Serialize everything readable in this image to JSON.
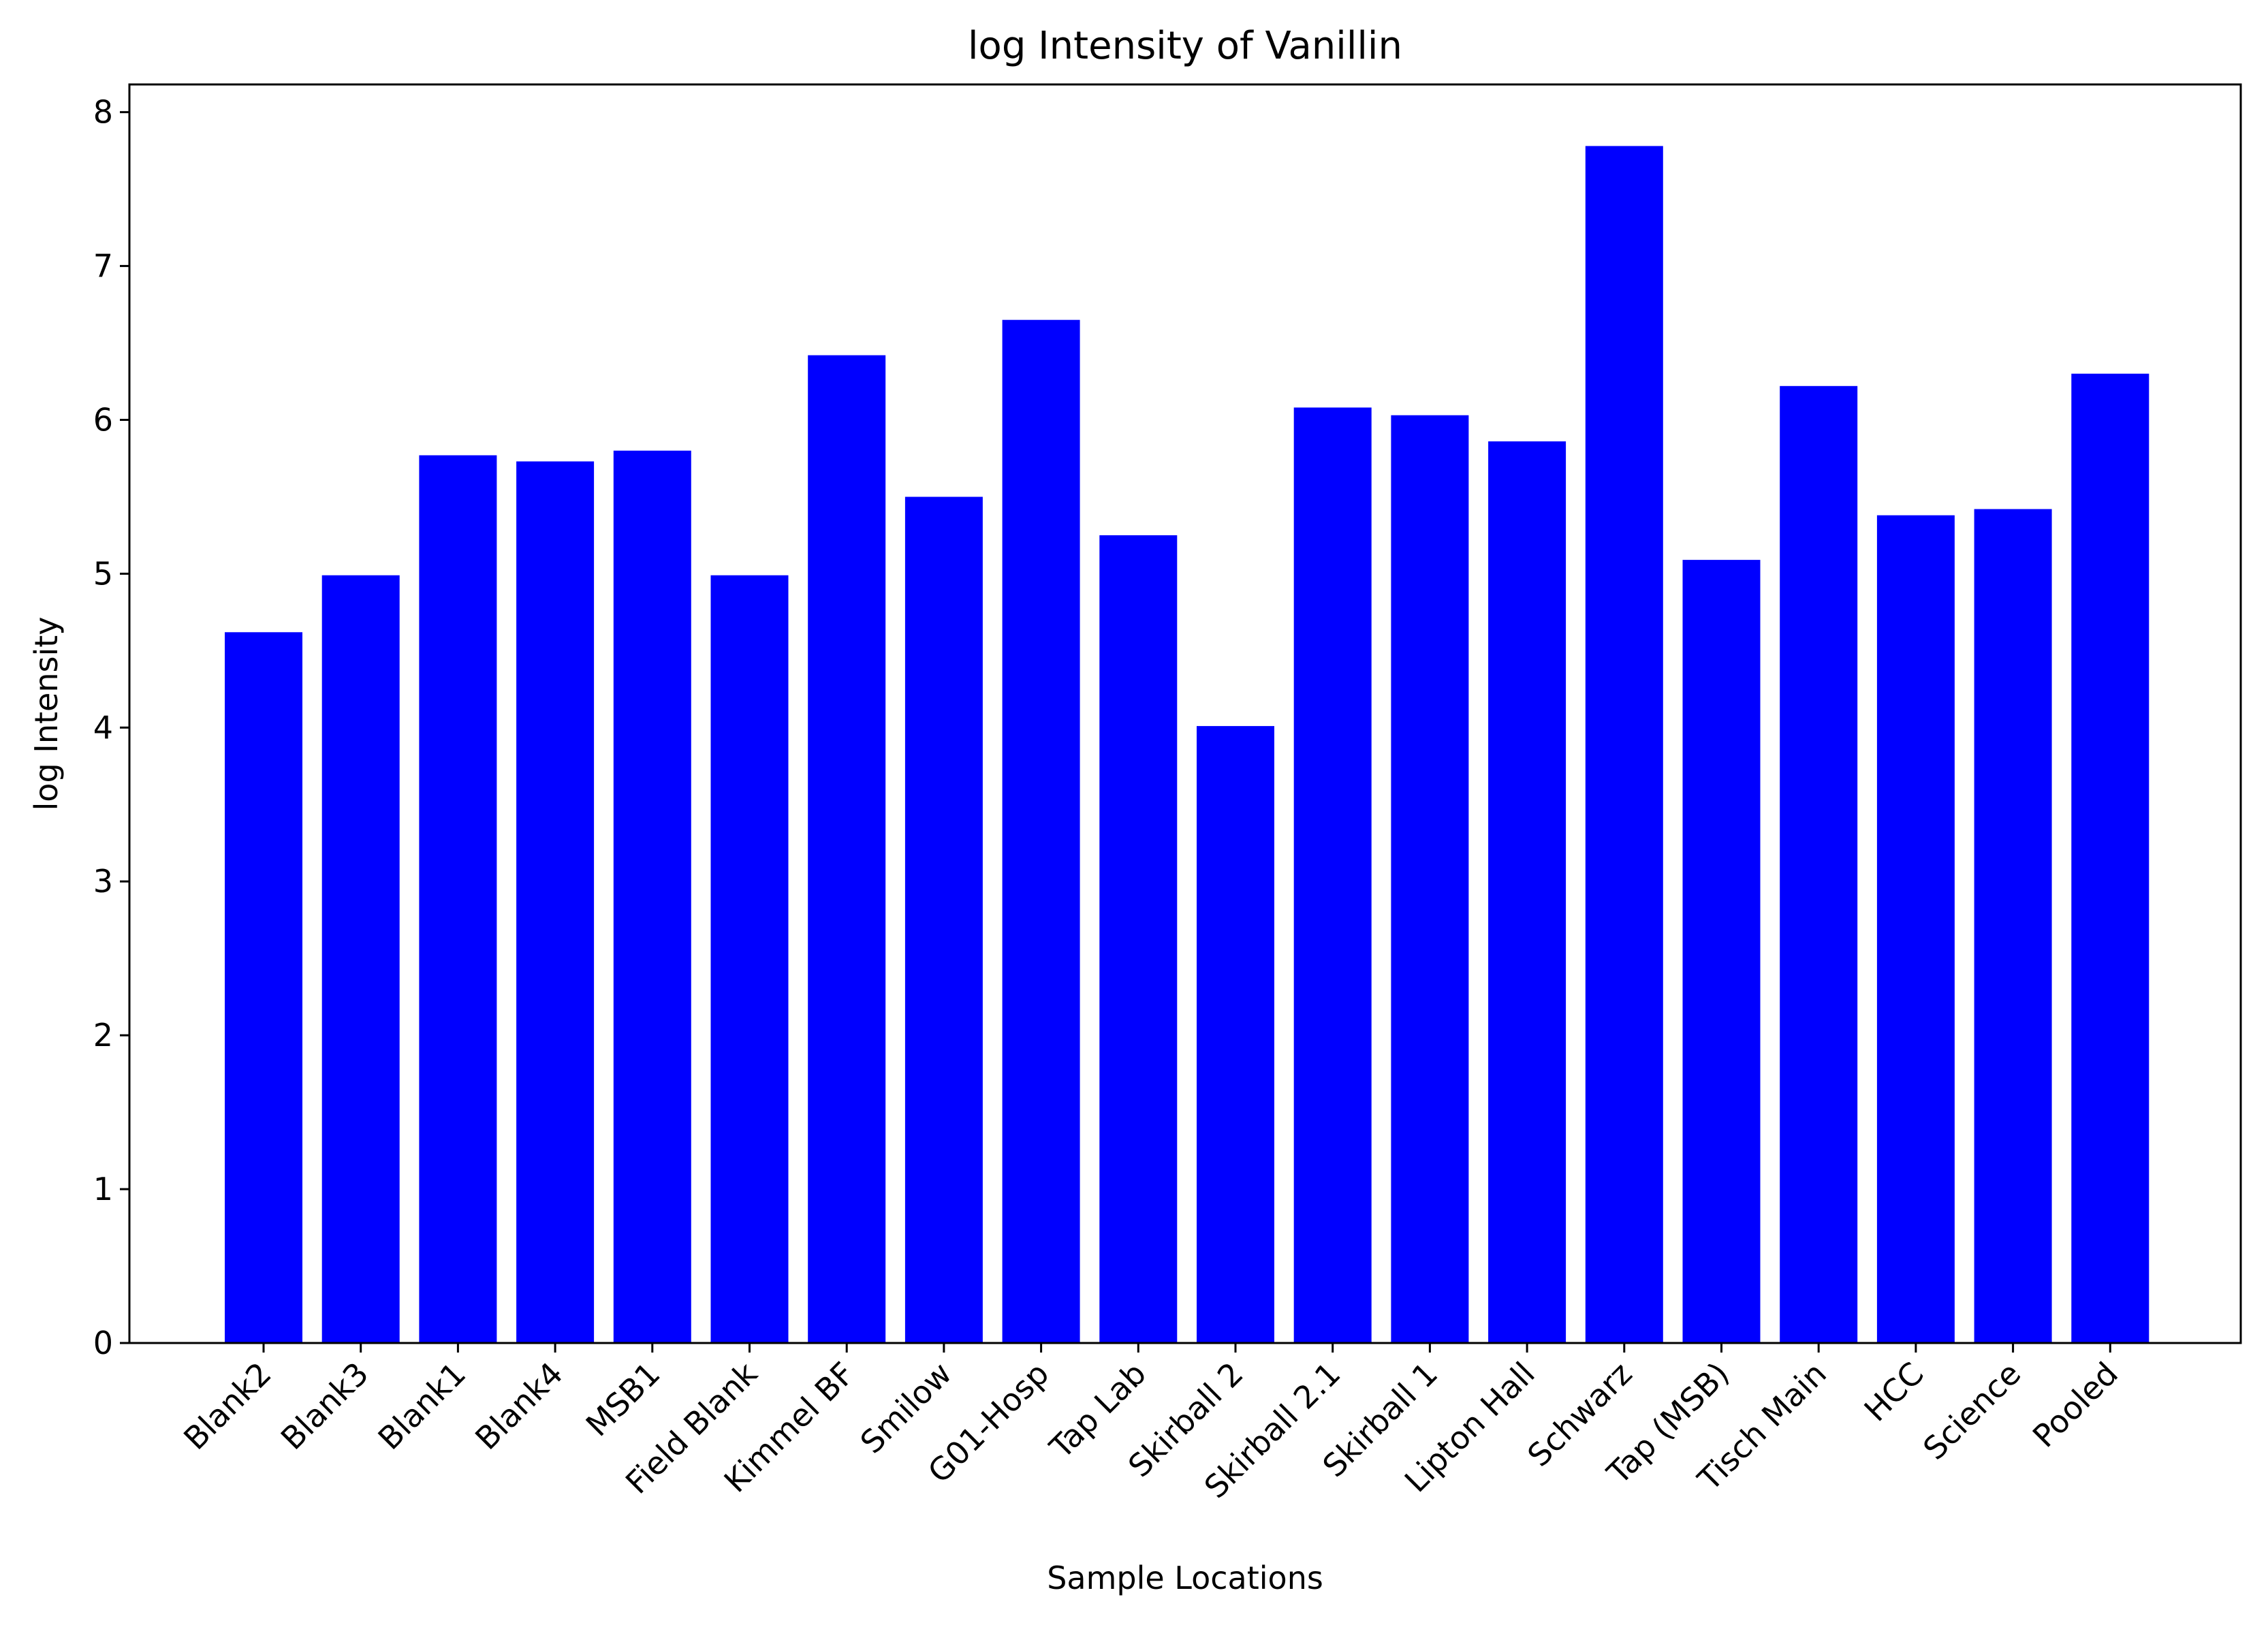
{
  "chart_data": {
    "type": "bar",
    "title": "log Intensity of Vanillin",
    "xlabel": "Sample Locations",
    "ylabel": "log Intensity",
    "categories": [
      "Blank2",
      "Blank3",
      "Blank1",
      "Blank4",
      "MSB1",
      "Field Blank",
      "Kimmel BF",
      "Smilow",
      "G01-Hosp",
      "Tap Lab",
      "Skirball 2",
      "Skirball 2.1",
      "Skirball 1",
      "Lipton Hall",
      "Schwarz",
      "Tap (MSB)",
      "Tisch Main",
      "HCC",
      "Science",
      "Pooled"
    ],
    "values": [
      4.62,
      4.99,
      5.77,
      5.73,
      5.8,
      4.99,
      6.42,
      5.5,
      6.65,
      5.25,
      4.01,
      6.08,
      6.03,
      5.86,
      7.78,
      5.09,
      6.22,
      5.38,
      5.42,
      6.3
    ],
    "ylim": [
      0,
      8.18
    ],
    "yticks": [
      "0",
      "1",
      "2",
      "3",
      "4",
      "5",
      "6",
      "7",
      "8"
    ],
    "bar_color": "#0000ff",
    "grid": false,
    "legend": "none"
  }
}
